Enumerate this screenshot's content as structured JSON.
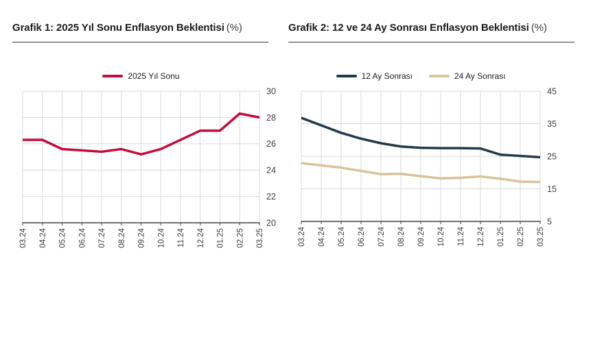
{
  "page": {
    "background": "#ffffff"
  },
  "colors": {
    "grid": "#d9d9d9",
    "axis": "#404040",
    "tick_label": "#3f3f3f",
    "series_red": "#c30b3c",
    "series_navy": "#24384a",
    "series_tan": "#d9c39c"
  },
  "chart_data": [
    {
      "type": "line",
      "title": "Grafik 1: 2025 Yıl Sonu Enflasyon Beklentisi",
      "unit_label": "(%)",
      "categories": [
        "03.24",
        "04.24",
        "05.24",
        "06.24",
        "07.24",
        "08.24",
        "09.24",
        "10.24",
        "11.24",
        "12.24",
        "01.25",
        "02.25",
        "03.25"
      ],
      "series": [
        {
          "name": "2025 Yıl Sonu",
          "color": "#c30b3c",
          "values": [
            26.3,
            26.3,
            25.6,
            25.5,
            25.4,
            25.6,
            25.2,
            25.6,
            26.3,
            27.0,
            27.0,
            28.3,
            28.0
          ]
        }
      ],
      "ylim": [
        20,
        30
      ],
      "yticks": [
        20,
        22,
        24,
        26,
        28,
        30
      ],
      "ytick_side": "right",
      "grid": true,
      "legend_position": "top"
    },
    {
      "type": "line",
      "title": "Grafik 2: 12 ve 24 Ay Sonrası Enflasyon Beklentisi",
      "unit_label": "(%)",
      "categories": [
        "03.24",
        "04.24",
        "05.24",
        "06.24",
        "07.24",
        "08.24",
        "09.24",
        "10.24",
        "11.24",
        "12.24",
        "01.25",
        "02.25",
        "03.25"
      ],
      "series": [
        {
          "name": "12 Ay Sonrası",
          "color": "#24384a",
          "values": [
            36.8,
            34.5,
            32.2,
            30.4,
            29.0,
            28.0,
            27.6,
            27.5,
            27.5,
            27.4,
            25.5,
            25.1,
            24.7
          ]
        },
        {
          "name": "24 Ay Sonrası",
          "color": "#d9c39c",
          "values": [
            22.9,
            22.2,
            21.5,
            20.5,
            19.5,
            19.6,
            18.9,
            18.2,
            18.4,
            18.8,
            18.1,
            17.2,
            17.1
          ]
        }
      ],
      "ylim": [
        5,
        45
      ],
      "yticks": [
        5,
        15,
        25,
        35,
        45
      ],
      "ytick_side": "right",
      "grid": true,
      "legend_position": "top"
    }
  ]
}
